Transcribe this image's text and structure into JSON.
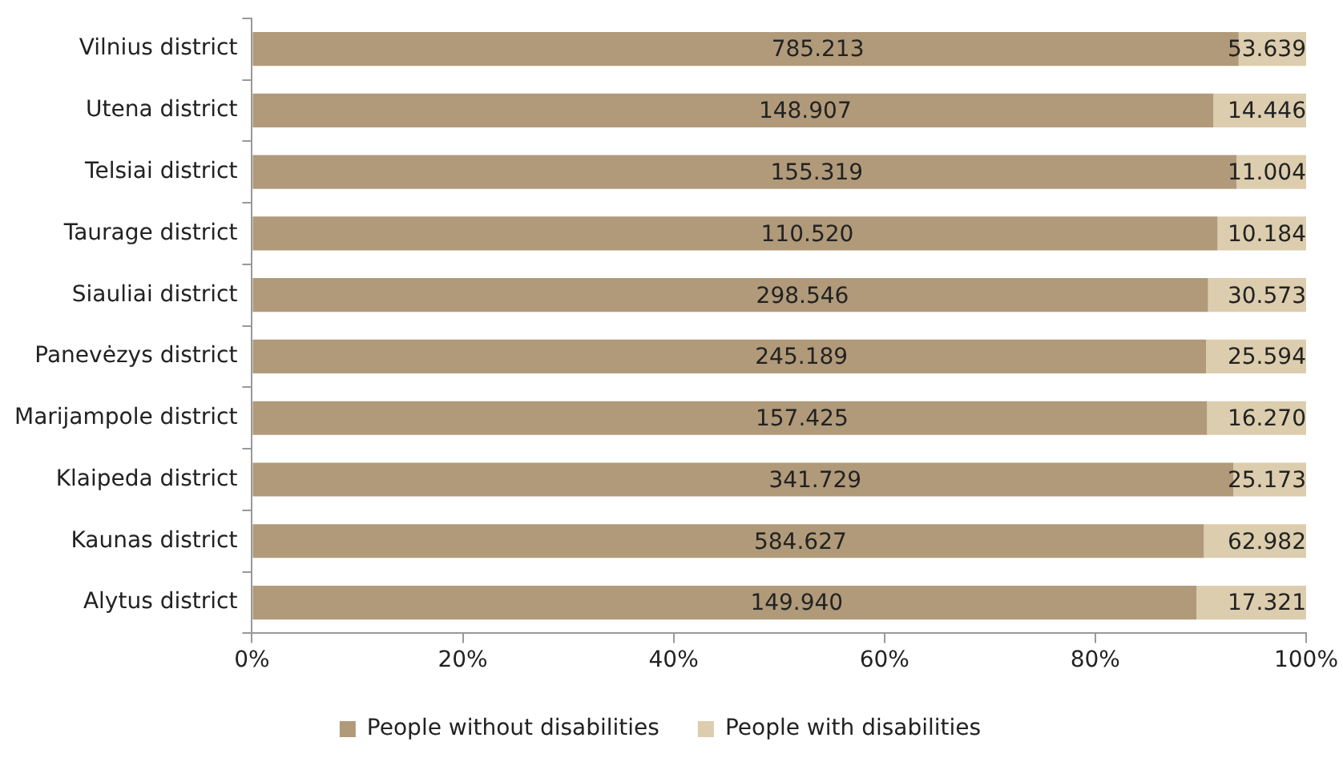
{
  "chart_data": {
    "type": "bar",
    "orientation": "horizontal",
    "stacked": true,
    "categories": [
      "Vilnius district",
      "Utena district",
      "Telsiai district",
      "Taurage district",
      "Siauliai district",
      "Panevėzys district",
      "Marijampole district",
      "Klaipeda district",
      "Kaunas district",
      "Alytus district"
    ],
    "series": [
      {
        "name": "People without disabilities",
        "color": "#b09a7a",
        "values": [
          93.6,
          91.2,
          93.4,
          91.6,
          90.7,
          90.5,
          90.6,
          93.1,
          90.3,
          89.6
        ]
      },
      {
        "name": "People with disabilities",
        "color": "#dccdae",
        "values": [
          6.4,
          8.8,
          6.6,
          8.4,
          9.3,
          9.5,
          9.4,
          6.9,
          9.7,
          10.4
        ]
      }
    ],
    "annotations": [
      "785.213",
      "53.639",
      "148.907",
      "14.446",
      "155.319",
      "11.004",
      "110.520",
      "10.184",
      "298.546",
      "30.573",
      "245.189",
      "25.594",
      "157.425",
      "16.270",
      "341.729",
      "25.173",
      "584.627",
      "62.982",
      "149.940",
      "17.321"
    ],
    "xlim": [
      0,
      100
    ],
    "xticks": [
      {
        "value": 0,
        "label": "0%"
      },
      {
        "value": 20,
        "label": "20%"
      },
      {
        "value": 40,
        "label": "40%"
      },
      {
        "value": 60,
        "label": "60%"
      },
      {
        "value": 80,
        "label": "80%"
      },
      {
        "value": 100,
        "label": "100%"
      }
    ],
    "legend": "bottom"
  }
}
